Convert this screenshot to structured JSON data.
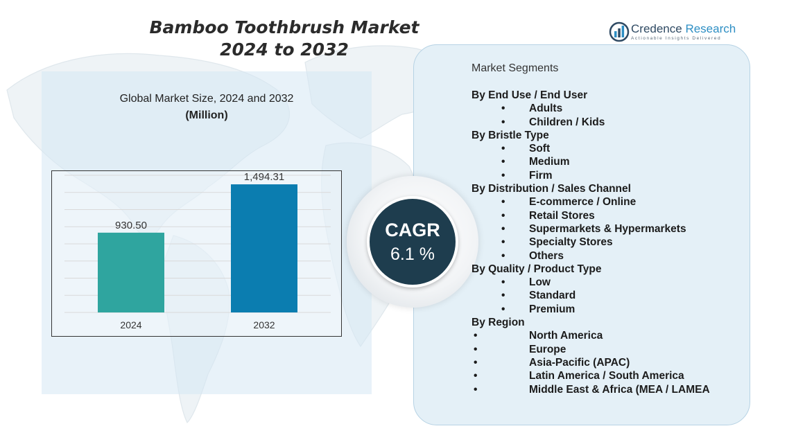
{
  "title": {
    "line1": "Bamboo Toothbrush Market",
    "line2": "2024 to 2032"
  },
  "logo": {
    "name_part1": "Credence",
    "name_part2": " Research",
    "tagline": "Actionable Insights Delivered",
    "icon": "credence-logo-icon"
  },
  "chart_heading": "Global Market Size,  2024 and 2032",
  "chart_unit": "(Million)",
  "chart_data": {
    "type": "bar",
    "categories": [
      "2024",
      "2032"
    ],
    "values": [
      930.5,
      1494.31
    ],
    "value_labels": [
      "930.50",
      "1,494.31"
    ],
    "ylim": [
      0,
      1600
    ],
    "grid": true,
    "colors": [
      "#2fa59f",
      "#0b7db0"
    ]
  },
  "cagr": {
    "label": "CAGR",
    "value": "6.1 %"
  },
  "segments": {
    "title": "Market Segments",
    "groups": [
      {
        "heading": "By End Use / End User",
        "items": [
          "Adults",
          "Children / Kids"
        ]
      },
      {
        "heading": "By Bristle Type",
        "items": [
          "Soft",
          "Medium",
          "Firm"
        ]
      },
      {
        "heading": "By Distribution / Sales Channel",
        "items": [
          "E-commerce / Online",
          "Retail Stores",
          "Supermarkets & Hypermarkets",
          "Specialty Stores",
          "Others"
        ]
      },
      {
        "heading": "By Quality / Product Type",
        "items": [
          "Low",
          "Standard",
          "Premium"
        ]
      },
      {
        "heading": "By Region",
        "items": [
          "North America",
          "Europe",
          "Asia-Pacific (APAC)",
          "Latin America / South America",
          "Middle East & Africa (MEA / LAMEA"
        ]
      }
    ]
  }
}
